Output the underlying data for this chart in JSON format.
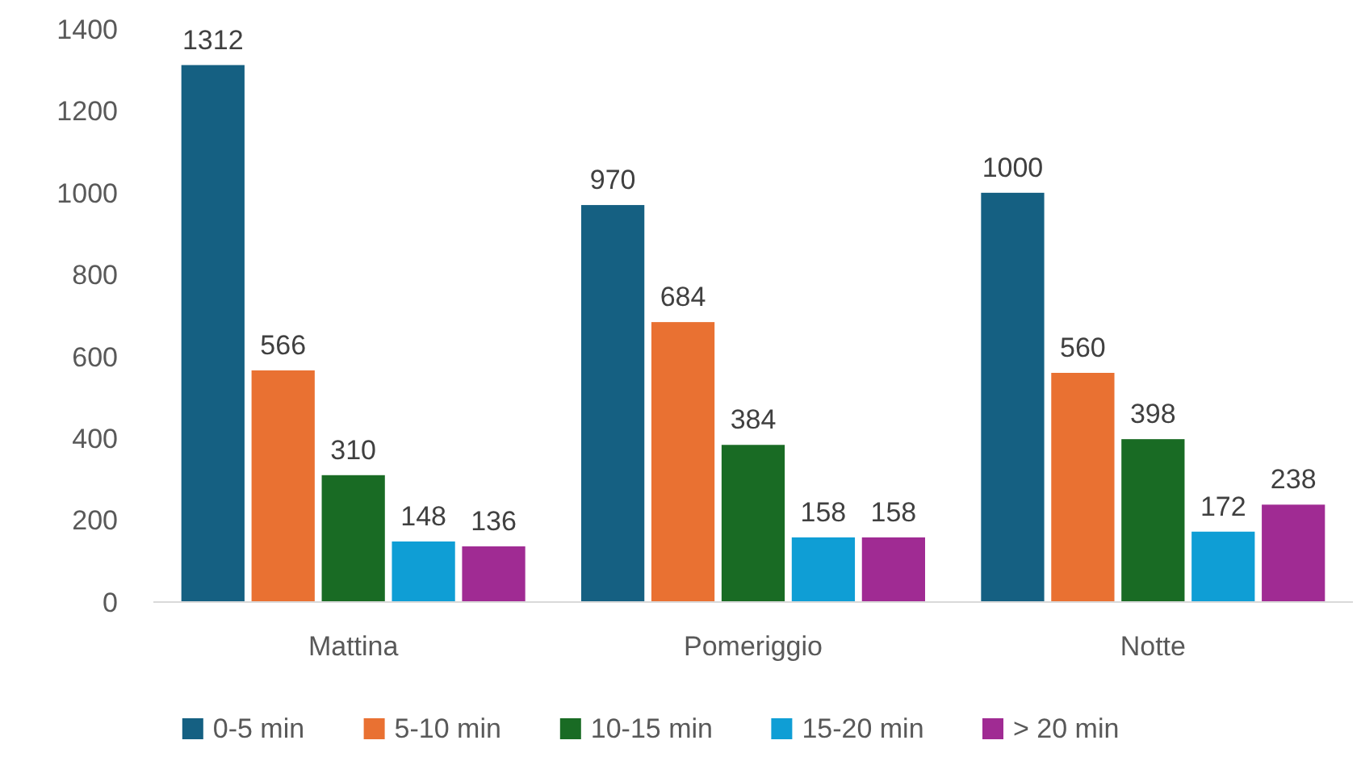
{
  "chart_data": {
    "type": "bar",
    "categories": [
      "Mattina",
      "Pomeriggio",
      "Notte"
    ],
    "series": [
      {
        "name": "0-5 min",
        "color": "#156082",
        "values": [
          1312,
          970,
          1000
        ]
      },
      {
        "name": "5-10 min",
        "color": "#e97132",
        "values": [
          566,
          684,
          560
        ]
      },
      {
        "name": "10-15 min",
        "color": "#196b24",
        "values": [
          310,
          384,
          398
        ]
      },
      {
        "name": "15-20 min",
        "color": "#0f9ed5",
        "values": [
          148,
          158,
          172
        ]
      },
      {
        "name": "> 20 min",
        "color": "#a02b93",
        "values": [
          136,
          158,
          238
        ]
      }
    ],
    "ylim": [
      0,
      1400
    ],
    "yticks": [
      0,
      200,
      400,
      600,
      800,
      1000,
      1200,
      1400
    ],
    "grid": false,
    "data_labels": true,
    "legend": "bottom"
  }
}
